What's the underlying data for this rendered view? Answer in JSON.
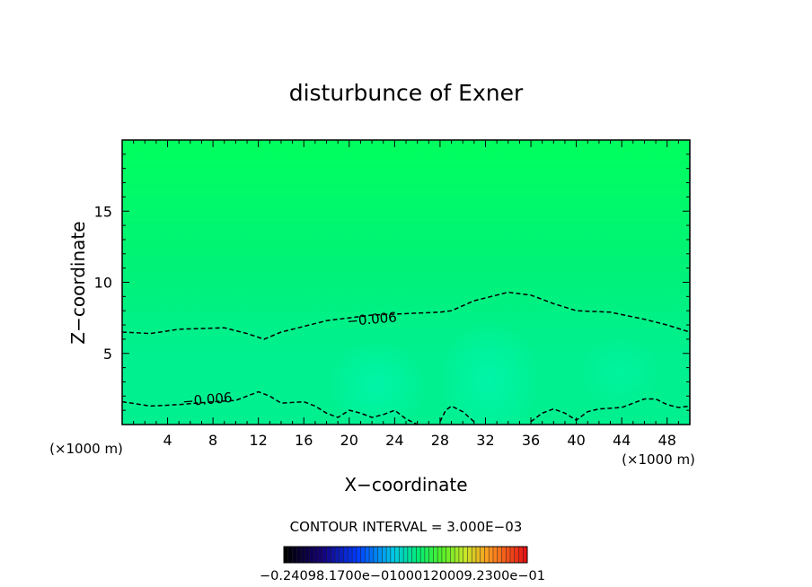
{
  "chart_data": {
    "type": "contour",
    "title": "disturbunce of Exner",
    "xlabel": "X−coordinate",
    "ylabel": "Z−coordinate",
    "x_unit": "(×1000 m)",
    "y_unit": "(×1000 m)",
    "xlim": [
      0,
      50
    ],
    "ylim": [
      0,
      20
    ],
    "x_ticks": [
      4,
      8,
      12,
      16,
      20,
      24,
      28,
      32,
      36,
      40,
      44,
      48
    ],
    "y_ticks": [
      5,
      10,
      15
    ],
    "contour_interval_text": "CONTOUR INTERVAL = 3.000E−03",
    "contours": [
      {
        "level": -0.006,
        "label": "−0.006",
        "label_at": [
          22,
          7.4
        ],
        "points": [
          [
            0,
            6.5
          ],
          [
            2.5,
            6.4
          ],
          [
            5,
            6.7
          ],
          [
            9,
            6.8
          ],
          [
            11,
            6.4
          ],
          [
            12.5,
            6.0
          ],
          [
            14,
            6.5
          ],
          [
            18,
            7.3
          ],
          [
            22,
            7.7
          ],
          [
            28,
            7.9
          ],
          [
            29,
            8.0
          ],
          [
            31,
            8.7
          ],
          [
            34,
            9.3
          ],
          [
            36,
            9.1
          ],
          [
            38,
            8.5
          ],
          [
            40,
            8.0
          ],
          [
            43,
            7.9
          ],
          [
            46,
            7.4
          ],
          [
            48,
            7.0
          ],
          [
            50,
            6.5
          ]
        ]
      },
      {
        "level": -0.006,
        "label": "−0.006",
        "label_at": [
          7.5,
          1.75
        ],
        "points": [
          [
            0,
            1.6
          ],
          [
            2.5,
            1.3
          ],
          [
            5,
            1.4
          ],
          [
            8,
            1.6
          ],
          [
            10,
            1.7
          ],
          [
            12,
            2.3
          ],
          [
            13,
            2.0
          ],
          [
            14,
            1.5
          ],
          [
            16,
            1.6
          ],
          [
            17,
            1.3
          ],
          [
            18,
            0.8
          ],
          [
            19,
            0.5
          ],
          [
            20,
            1.0
          ],
          [
            21,
            0.8
          ],
          [
            22,
            0.5
          ],
          [
            23,
            0.7
          ],
          [
            24,
            1.0
          ],
          [
            25,
            0.4
          ],
          [
            26,
            0.0
          ]
        ]
      },
      {
        "level": -0.006,
        "label": "",
        "points": [
          [
            28,
            0.2
          ],
          [
            28.5,
            1.0
          ],
          [
            29,
            1.3
          ],
          [
            30,
            0.9
          ],
          [
            31,
            0.2
          ]
        ]
      },
      {
        "level": -0.006,
        "label": "",
        "points": [
          [
            36,
            0.2
          ],
          [
            37,
            0.8
          ],
          [
            38,
            1.1
          ],
          [
            39,
            0.8
          ],
          [
            40,
            0.3
          ],
          [
            41,
            0.9
          ],
          [
            42,
            1.1
          ],
          [
            44,
            1.2
          ],
          [
            46,
            1.8
          ],
          [
            47,
            1.8
          ],
          [
            48,
            1.4
          ],
          [
            49,
            1.2
          ],
          [
            50,
            1.3
          ]
        ]
      }
    ],
    "field_colors": {
      "top": "#00ff5e",
      "middle": "#00f277",
      "low": "#00f090",
      "core": "#00f5a8"
    },
    "colorbar": {
      "min_label": "−0.240",
      "tick_labels_text": "−0.24098.1700e−01000120009.2300e−01",
      "n_bands": 57
    }
  }
}
